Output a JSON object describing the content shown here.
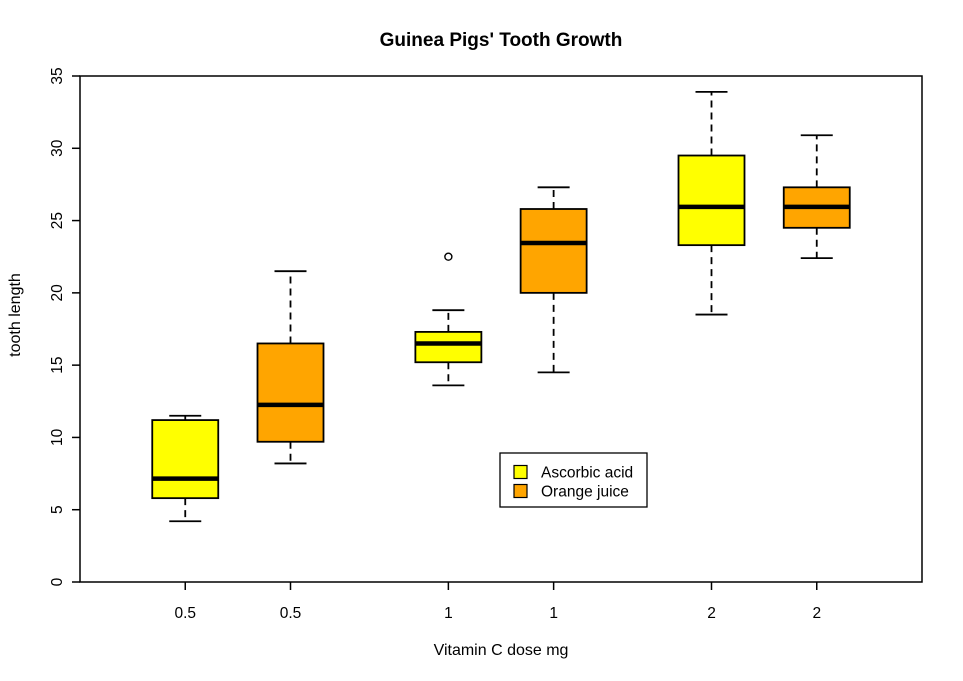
{
  "title": "Guinea Pigs' Tooth Growth",
  "chart_data": {
    "type": "boxplot",
    "title": "Guinea Pigs' Tooth Growth",
    "xlabel": "Vitamin C dose mg",
    "ylabel": "tooth length",
    "ylim": [
      0,
      35
    ],
    "xlim": [
      0,
      8
    ],
    "grid": false,
    "y_ticks": [
      0,
      5,
      10,
      15,
      20,
      25,
      30,
      35
    ],
    "x_tick_positions": [
      1,
      2,
      3.5,
      4.5,
      6,
      7
    ],
    "x_tick_labels": [
      "0.5",
      "0.5",
      "1",
      "1",
      "2",
      "2"
    ],
    "groups": [
      {
        "dose": "0.5",
        "series": "Ascorbic acid",
        "position": 1,
        "color": "#FFFF00",
        "whisker_low": 4.2,
        "q1": 5.8,
        "median": 7.15,
        "q3": 11.2,
        "whisker_high": 11.5,
        "outliers": []
      },
      {
        "dose": "0.5",
        "series": "Orange juice",
        "position": 2,
        "color": "#FFA500",
        "whisker_low": 8.2,
        "q1": 9.7,
        "median": 12.25,
        "q3": 16.5,
        "whisker_high": 21.5,
        "outliers": []
      },
      {
        "dose": "1",
        "series": "Ascorbic acid",
        "position": 3.5,
        "color": "#FFFF00",
        "whisker_low": 13.6,
        "q1": 15.2,
        "median": 16.5,
        "q3": 17.3,
        "whisker_high": 18.8,
        "outliers": [
          22.5
        ]
      },
      {
        "dose": "1",
        "series": "Orange juice",
        "position": 4.5,
        "color": "#FFA500",
        "whisker_low": 14.5,
        "q1": 20.0,
        "median": 23.45,
        "q3": 25.8,
        "whisker_high": 27.3,
        "outliers": []
      },
      {
        "dose": "2",
        "series": "Ascorbic acid",
        "position": 6,
        "color": "#FFFF00",
        "whisker_low": 18.5,
        "q1": 23.3,
        "median": 25.95,
        "q3": 29.5,
        "whisker_high": 33.9,
        "outliers": []
      },
      {
        "dose": "2",
        "series": "Orange juice",
        "position": 7,
        "color": "#FFA500",
        "whisker_low": 22.4,
        "q1": 24.5,
        "median": 25.95,
        "q3": 27.3,
        "whisker_high": 30.9,
        "outliers": []
      }
    ],
    "legend": {
      "entries": [
        {
          "label": "Ascorbic acid",
          "color": "#FFFF00"
        },
        {
          "label": "Orange juice",
          "color": "#FFA500"
        }
      ]
    },
    "colors": {
      "ascorbic_acid": "#FFFF00",
      "orange_juice": "#FFA500",
      "line": "#000000",
      "background": "#FFFFFF"
    }
  }
}
